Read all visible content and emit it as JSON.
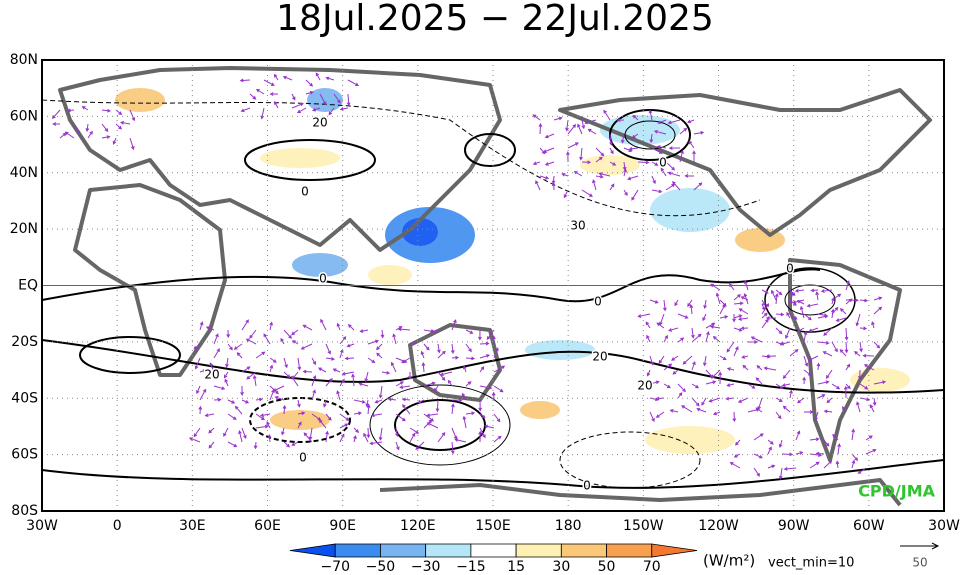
{
  "title": "18Jul.2025 − 22Jul.2025",
  "lat_labels": [
    "80N",
    "60N",
    "40N",
    "20N",
    "EQ",
    "20S",
    "40S",
    "60S",
    "80S"
  ],
  "lon_labels": [
    "30W",
    "0",
    "30E",
    "60E",
    "90E",
    "120E",
    "150E",
    "180",
    "150W",
    "120W",
    "90W",
    "60W",
    "30W"
  ],
  "contour_labels": [
    "20",
    "0",
    "0",
    "30",
    "0",
    "0",
    "0",
    "20",
    "20",
    "20",
    "0",
    "0"
  ],
  "credit": "CPD/JMA",
  "colorbar": {
    "labels": [
      "−70",
      "−50",
      "−30",
      "−15",
      "15",
      "30",
      "50",
      "70"
    ],
    "colors": [
      "#0a50f0",
      "#3c8cf0",
      "#78b4f0",
      "#b4e6f8",
      "#ffffff",
      "#fff0b4",
      "#fac878",
      "#f8a050",
      "#f47830"
    ],
    "unit": "(W/m²)",
    "note": "vect_min=10"
  },
  "vector_scale": "50"
}
